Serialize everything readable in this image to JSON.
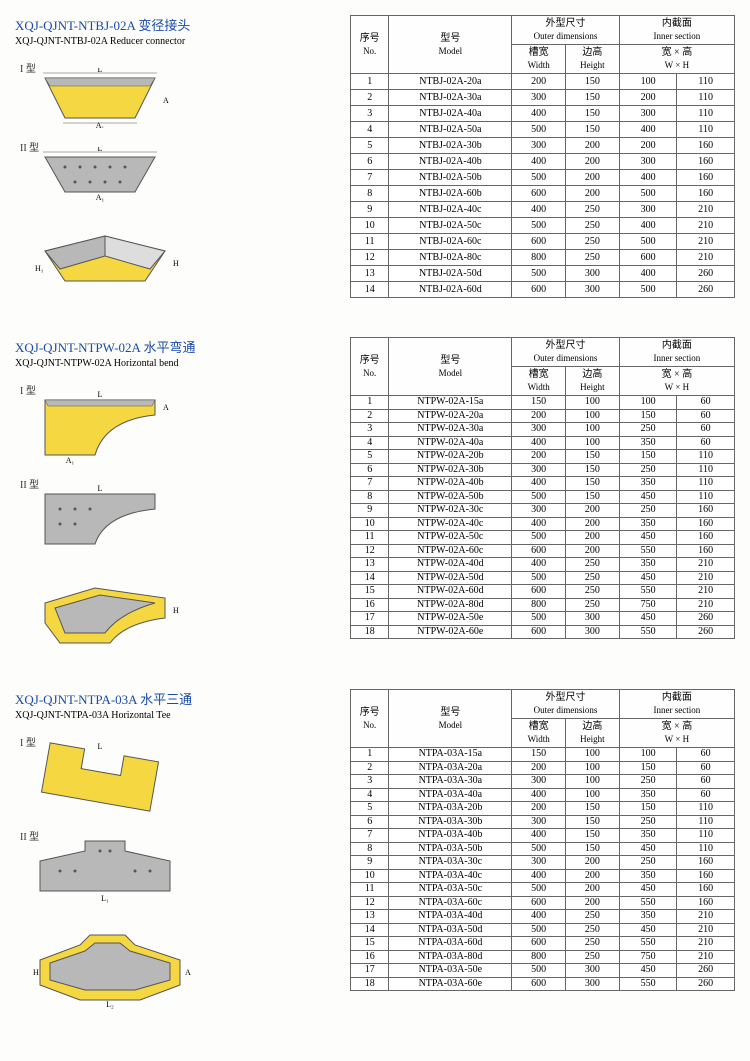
{
  "sections": [
    {
      "title_cn": "XQJ-QJNT-NTBJ-02A 变径接头",
      "title_en": "XQJ-QJNT-NTBJ-02A Reducer connector",
      "diagrams": [
        "I 型",
        "II 型"
      ],
      "table": {
        "compact": false,
        "headers": {
          "no": {
            "cn": "序号",
            "en": "No."
          },
          "model": {
            "cn": "型号",
            "en": "Model"
          },
          "outer": {
            "cn": "外型尺寸",
            "en": "Outer dimensions"
          },
          "inner": {
            "cn": "内截面",
            "en": "Inner section"
          },
          "width": {
            "cn": "槽宽",
            "en": "Width"
          },
          "height": {
            "cn": "边高",
            "en": "Height"
          },
          "wh": {
            "cn": "宽 × 高",
            "en": "W × H"
          }
        },
        "rows": [
          [
            "1",
            "NTBJ-02A-20a",
            "200",
            "150",
            "100",
            "110"
          ],
          [
            "2",
            "NTBJ-02A-30a",
            "300",
            "150",
            "200",
            "110"
          ],
          [
            "3",
            "NTBJ-02A-40a",
            "400",
            "150",
            "300",
            "110"
          ],
          [
            "4",
            "NTBJ-02A-50a",
            "500",
            "150",
            "400",
            "110"
          ],
          [
            "5",
            "NTBJ-02A-30b",
            "300",
            "200",
            "200",
            "160"
          ],
          [
            "6",
            "NTBJ-02A-40b",
            "400",
            "200",
            "300",
            "160"
          ],
          [
            "7",
            "NTBJ-02A-50b",
            "500",
            "200",
            "400",
            "160"
          ],
          [
            "8",
            "NTBJ-02A-60b",
            "600",
            "200",
            "500",
            "160"
          ],
          [
            "9",
            "NTBJ-02A-40c",
            "400",
            "250",
            "300",
            "210"
          ],
          [
            "10",
            "NTBJ-02A-50c",
            "500",
            "250",
            "400",
            "210"
          ],
          [
            "11",
            "NTBJ-02A-60c",
            "600",
            "250",
            "500",
            "210"
          ],
          [
            "12",
            "NTBJ-02A-80c",
            "800",
            "250",
            "600",
            "210"
          ],
          [
            "13",
            "NTBJ-02A-50d",
            "500",
            "300",
            "400",
            "260"
          ],
          [
            "14",
            "NTBJ-02A-60d",
            "600",
            "300",
            "500",
            "260"
          ]
        ]
      }
    },
    {
      "title_cn": "XQJ-QJNT-NTPW-02A 水平弯通",
      "title_en": "XQJ-QJNT-NTPW-02A Horizontal bend",
      "diagrams": [
        "I 型",
        "II 型"
      ],
      "table": {
        "compact": true,
        "headers": {
          "no": {
            "cn": "序号",
            "en": "No."
          },
          "model": {
            "cn": "型号",
            "en": "Model"
          },
          "outer": {
            "cn": "外型尺寸",
            "en": "Outer dimensions"
          },
          "inner": {
            "cn": "内截面",
            "en": "Inner section"
          },
          "width": {
            "cn": "槽宽",
            "en": "Width"
          },
          "height": {
            "cn": "边高",
            "en": "Height"
          },
          "wh": {
            "cn": "宽 × 高",
            "en": "W × H"
          }
        },
        "rows": [
          [
            "1",
            "NTPW-02A-15a",
            "150",
            "100",
            "100",
            "60"
          ],
          [
            "2",
            "NTPW-02A-20a",
            "200",
            "100",
            "150",
            "60"
          ],
          [
            "3",
            "NTPW-02A-30a",
            "300",
            "100",
            "250",
            "60"
          ],
          [
            "4",
            "NTPW-02A-40a",
            "400",
            "100",
            "350",
            "60"
          ],
          [
            "5",
            "NTPW-02A-20b",
            "200",
            "150",
            "150",
            "110"
          ],
          [
            "6",
            "NTPW-02A-30b",
            "300",
            "150",
            "250",
            "110"
          ],
          [
            "7",
            "NTPW-02A-40b",
            "400",
            "150",
            "350",
            "110"
          ],
          [
            "8",
            "NTPW-02A-50b",
            "500",
            "150",
            "450",
            "110"
          ],
          [
            "9",
            "NTPW-02A-30c",
            "300",
            "200",
            "250",
            "160"
          ],
          [
            "10",
            "NTPW-02A-40c",
            "400",
            "200",
            "350",
            "160"
          ],
          [
            "11",
            "NTPW-02A-50c",
            "500",
            "200",
            "450",
            "160"
          ],
          [
            "12",
            "NTPW-02A-60c",
            "600",
            "200",
            "550",
            "160"
          ],
          [
            "13",
            "NTPW-02A-40d",
            "400",
            "250",
            "350",
            "210"
          ],
          [
            "14",
            "NTPW-02A-50d",
            "500",
            "250",
            "450",
            "210"
          ],
          [
            "15",
            "NTPW-02A-60d",
            "600",
            "250",
            "550",
            "210"
          ],
          [
            "16",
            "NTPW-02A-80d",
            "800",
            "250",
            "750",
            "210"
          ],
          [
            "17",
            "NTPW-02A-50e",
            "500",
            "300",
            "450",
            "260"
          ],
          [
            "18",
            "NTPW-02A-60e",
            "600",
            "300",
            "550",
            "260"
          ]
        ]
      }
    },
    {
      "title_cn": "XQJ-QJNT-NTPA-03A 水平三通",
      "title_en": "XQJ-QJNT-NTPA-03A Horizontal Tee",
      "diagrams": [
        "I 型",
        "II 型"
      ],
      "table": {
        "compact": true,
        "headers": {
          "no": {
            "cn": "序号",
            "en": "No."
          },
          "model": {
            "cn": "型号",
            "en": "Model"
          },
          "outer": {
            "cn": "外型尺寸",
            "en": "Outer dimensions"
          },
          "inner": {
            "cn": "内截面",
            "en": "Inner section"
          },
          "width": {
            "cn": "槽宽",
            "en": "Width"
          },
          "height": {
            "cn": "边高",
            "en": "Height"
          },
          "wh": {
            "cn": "宽 × 高",
            "en": "W × H"
          }
        },
        "rows": [
          [
            "1",
            "NTPA-03A-15a",
            "150",
            "100",
            "100",
            "60"
          ],
          [
            "2",
            "NTPA-03A-20a",
            "200",
            "100",
            "150",
            "60"
          ],
          [
            "3",
            "NTPA-03A-30a",
            "300",
            "100",
            "250",
            "60"
          ],
          [
            "4",
            "NTPA-03A-40a",
            "400",
            "100",
            "350",
            "60"
          ],
          [
            "5",
            "NTPA-03A-20b",
            "200",
            "150",
            "150",
            "110"
          ],
          [
            "6",
            "NTPA-03A-30b",
            "300",
            "150",
            "250",
            "110"
          ],
          [
            "7",
            "NTPA-03A-40b",
            "400",
            "150",
            "350",
            "110"
          ],
          [
            "8",
            "NTPA-03A-50b",
            "500",
            "150",
            "450",
            "110"
          ],
          [
            "9",
            "NTPA-03A-30c",
            "300",
            "200",
            "250",
            "160"
          ],
          [
            "10",
            "NTPA-03A-40c",
            "400",
            "200",
            "350",
            "160"
          ],
          [
            "11",
            "NTPA-03A-50c",
            "500",
            "200",
            "450",
            "160"
          ],
          [
            "12",
            "NTPA-03A-60c",
            "600",
            "200",
            "550",
            "160"
          ],
          [
            "13",
            "NTPA-03A-40d",
            "400",
            "250",
            "350",
            "210"
          ],
          [
            "14",
            "NTPA-03A-50d",
            "500",
            "250",
            "450",
            "210"
          ],
          [
            "15",
            "NTPA-03A-60d",
            "600",
            "250",
            "550",
            "210"
          ],
          [
            "16",
            "NTPA-03A-80d",
            "800",
            "250",
            "750",
            "210"
          ],
          [
            "17",
            "NTPA-03A-50e",
            "500",
            "300",
            "450",
            "260"
          ],
          [
            "18",
            "NTPA-03A-60e",
            "600",
            "300",
            "550",
            "260"
          ]
        ]
      }
    }
  ],
  "colors": {
    "title": "#1a4ba8",
    "border": "#666666",
    "yellow": "#f5d742",
    "gray": "#b8b8b8",
    "darkgray": "#888888"
  },
  "dim_labels": [
    "L",
    "A",
    "A₁",
    "H",
    "H₁",
    "L₁",
    "L₂"
  ]
}
